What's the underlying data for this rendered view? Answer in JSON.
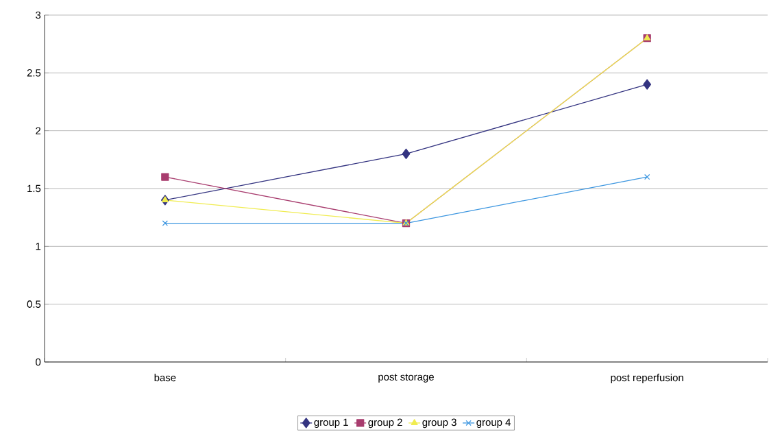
{
  "chart_data": {
    "type": "line",
    "categories": [
      "base",
      "post storage",
      "post reperfusion"
    ],
    "series": [
      {
        "name": "group 1",
        "color": "#333380",
        "marker": "diamond",
        "values": [
          1.4,
          1.8,
          2.4
        ]
      },
      {
        "name": "group 2",
        "color": "#a83c6e",
        "marker": "square",
        "values": [
          1.6,
          1.2,
          2.8
        ]
      },
      {
        "name": "group 3",
        "color": "#f0ec50",
        "marker": "triangle",
        "values": [
          1.4,
          1.2,
          2.8
        ]
      },
      {
        "name": "group 4",
        "color": "#3c96e0",
        "marker": "cross",
        "values": [
          1.2,
          1.2,
          1.6
        ]
      }
    ],
    "ylim": [
      0,
      3
    ],
    "yticks": [
      0,
      0.5,
      1,
      1.5,
      2,
      2.5,
      3
    ],
    "grid": "y",
    "legend": "bottom",
    "line_style": "solid"
  }
}
